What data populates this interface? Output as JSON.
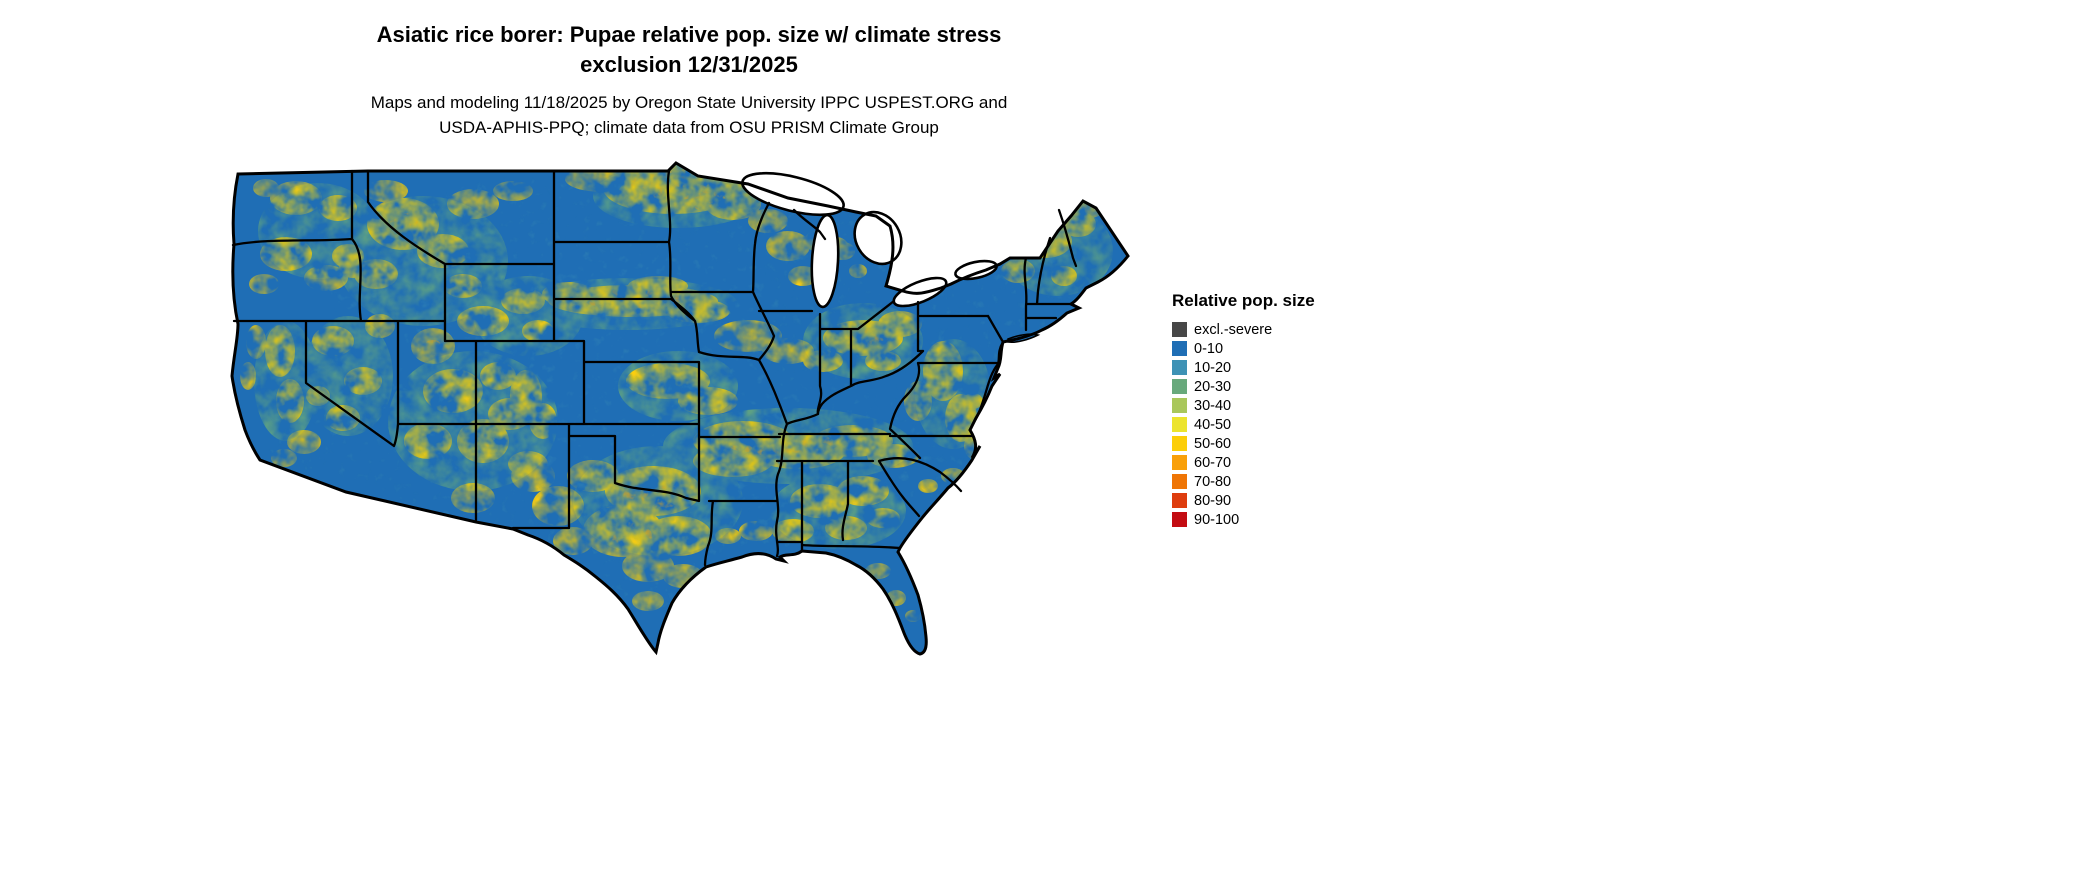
{
  "page": {
    "title_line1": "Asiatic rice borer: Pupae relative pop. size w/ climate stress",
    "title_line2": "exclusion 12/31/2025",
    "subtitle_line1": "Maps and modeling 11/18/2025 by Oregon State University IPPC USPEST.ORG and",
    "subtitle_line2": "USDA-APHIS-PPQ; climate data from OSU PRISM Climate Group"
  },
  "map": {
    "base_color": "#1F6EB5",
    "border_color": "#000000",
    "water_color": "#FFFFFF"
  },
  "legend": {
    "title": "Relative pop. size",
    "entries": [
      {
        "label": "excl.-severe",
        "color": "#474747"
      },
      {
        "label": "0-10",
        "color": "#1F6EB5"
      },
      {
        "label": "10-20",
        "color": "#3E92B5"
      },
      {
        "label": "20-30",
        "color": "#68A97C"
      },
      {
        "label": "30-40",
        "color": "#A9C75B"
      },
      {
        "label": "40-50",
        "color": "#ECE42D"
      },
      {
        "label": "50-60",
        "color": "#FCCE08"
      },
      {
        "label": "60-70",
        "color": "#F9A009"
      },
      {
        "label": "70-80",
        "color": "#EF7505"
      },
      {
        "label": "80-90",
        "color": "#DE3D0E"
      },
      {
        "label": "90-100",
        "color": "#C30C12"
      }
    ]
  }
}
